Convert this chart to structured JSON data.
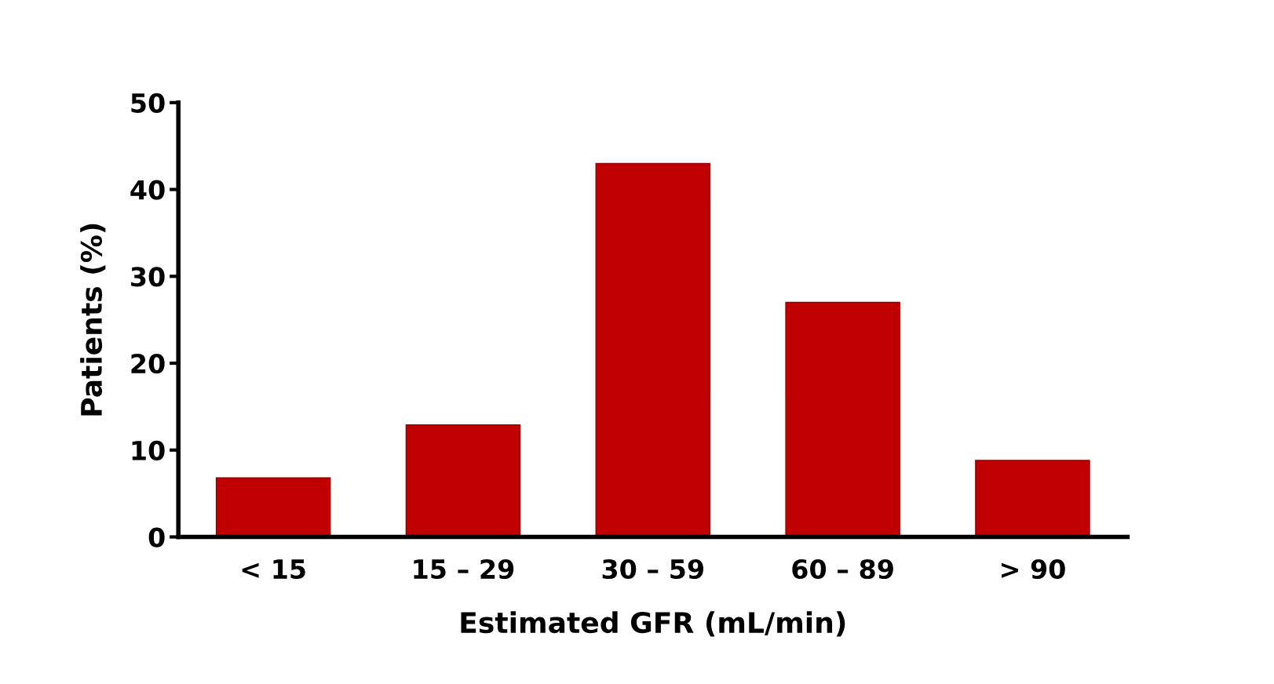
{
  "chart_data": {
    "type": "bar",
    "xlabel": "Estimated GFR (mL/min)",
    "ylabel": "Patients (%)",
    "categories": [
      "< 15",
      "15 – 29",
      "30 – 59",
      "60 – 89",
      "> 90"
    ],
    "values": [
      6.8,
      12.9,
      43,
      27,
      8.8
    ],
    "color": "#c00000",
    "ylim": [
      0,
      50
    ],
    "yticks": [
      0,
      10,
      20,
      30,
      40,
      50
    ],
    "grid": false
  }
}
